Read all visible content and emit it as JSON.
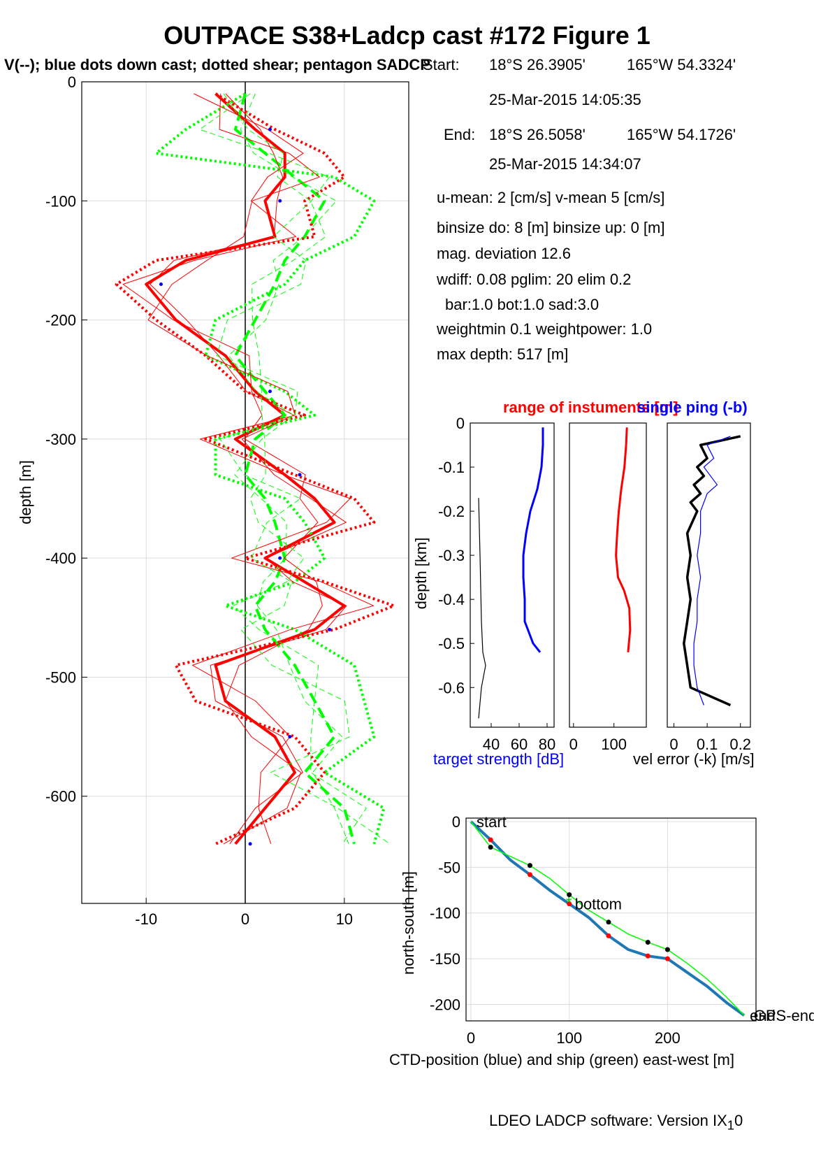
{
  "title": "OUTPACE S38+Ladcp cast #172  Figure 1",
  "subtitle": "V(--); blue dots down cast; dotted shear; pentagon SADCP",
  "info": {
    "start_label": "Start:",
    "start_lat": "18°S 26.3905'",
    "start_lon": "165°W 54.3324'",
    "start_time": "25-Mar-2015 14:05:35",
    "end_label": "End:",
    "end_lat": "18°S 26.5058'",
    "end_lon": "165°W 54.1726'",
    "end_time": "25-Mar-2015 14:34:07",
    "umean": "u-mean:   2 [cm/s]    v-mean   5 [cm/s]",
    "binsize": "binsize do: 8 [m]  binsize up:  0 [m]",
    "magdev": "mag. deviation 12.6",
    "wdiff": "wdiff: 0.08  pglim: 20  elim 0.2",
    "bar": "bar:1.0 bot:1.0 sad:3.0",
    "weight": "weightmin 0.1  weightpower: 1.0",
    "maxdepth": "max depth: 517 [m]"
  },
  "footer": "LDEO LADCP software: Version IX",
  "footer_sub": "1",
  "footer_tail": "0",
  "colors": {
    "u": "#ff0000",
    "v": "#00ff00",
    "blue": "#0000ff",
    "ctd": "#1f77b4"
  },
  "chart_data": [
    {
      "type": "line",
      "ylabel": "depth [m]",
      "xlabel": "",
      "xlim": [
        -16.5,
        16.5
      ],
      "ylim": [
        -690,
        0
      ],
      "xticks": [
        -10,
        0,
        10
      ],
      "yticks": [
        0,
        -100,
        -200,
        -300,
        -400,
        -500,
        -600
      ],
      "xtick_labels": [
        "-10",
        "0",
        "10"
      ],
      "ytick_labels": [
        "0",
        "-100",
        "-200",
        "-300",
        "-400",
        "-500",
        "-600"
      ],
      "grid": true,
      "depth": [
        -10,
        -40,
        -60,
        -80,
        -100,
        -130,
        -150,
        -170,
        -200,
        -230,
        -260,
        -280,
        -300,
        -330,
        -350,
        -370,
        -400,
        -420,
        -440,
        -460,
        -490,
        -520,
        -550,
        -580,
        -610,
        -640
      ],
      "series": [
        {
          "name": "u",
          "color": "#ff0000",
          "values": [
            -3,
            1,
            4,
            4,
            2,
            3,
            -6,
            -10,
            -7,
            -2,
            1,
            4,
            -1,
            4,
            7,
            9,
            2,
            6,
            10,
            7,
            -3,
            -2,
            3,
            5,
            2,
            -1
          ]
        },
        {
          "name": "v",
          "color": "#00ff00",
          "values": [
            0,
            -1,
            2,
            5,
            8,
            6,
            4,
            3,
            1,
            -1,
            2,
            4,
            1,
            0,
            2,
            3,
            4,
            3,
            1,
            2,
            5,
            7,
            9,
            6,
            10,
            11
          ]
        },
        {
          "name": "u-shear",
          "color": "#ff0000",
          "values": [
            -3,
            3,
            8,
            10,
            6,
            7,
            -9,
            -13,
            -9,
            -4,
            0,
            6,
            -4,
            5,
            11,
            13,
            0,
            8,
            15,
            9,
            -7,
            -5,
            5,
            8,
            5,
            -3
          ]
        },
        {
          "name": "v-shear",
          "color": "#00ff00",
          "values": [
            0,
            -6,
            -9,
            9,
            13,
            11,
            6,
            4,
            -3,
            -4,
            4,
            7,
            -3,
            -3,
            4,
            6,
            8,
            5,
            -2,
            5,
            11,
            12,
            13,
            8,
            14,
            13
          ]
        }
      ]
    },
    {
      "type": "line",
      "ylabel": "depth [km]",
      "xlabel": "target strength [dB]",
      "xlim": [
        25,
        85
      ],
      "ylim": [
        -0.69,
        0
      ],
      "xticks": [
        40,
        60,
        80
      ],
      "xtick_labels": [
        "40",
        "60",
        "80"
      ],
      "yticks": [
        0,
        -0.1,
        -0.2,
        -0.3,
        -0.4,
        -0.5,
        -0.6
      ],
      "ytick_labels": [
        "0",
        "-0.1",
        "-0.2",
        "-0.3",
        "-0.4",
        "-0.5",
        "-0.6"
      ],
      "depth": [
        -0.01,
        -0.05,
        -0.1,
        -0.15,
        -0.2,
        -0.25,
        -0.3,
        -0.35,
        -0.4,
        -0.45,
        -0.5,
        -0.52
      ],
      "series": [
        {
          "name": "",
          "color": "#0000ff",
          "values": [
            77,
            77,
            76,
            73,
            68,
            65,
            63,
            63,
            64,
            64,
            70,
            75
          ]
        }
      ],
      "black_depth": [
        -0.17,
        -0.3,
        -0.45,
        -0.52,
        -0.55,
        -0.6,
        -0.67
      ],
      "black_values": [
        31,
        32,
        33,
        34,
        36,
        33,
        31
      ]
    },
    {
      "type": "line",
      "title": "range of instuments [m]",
      "xlim": [
        -10,
        180
      ],
      "xticks": [
        0,
        100
      ],
      "xtick_labels": [
        "0",
        "100"
      ],
      "ylim": [
        -0.69,
        0
      ],
      "depth": [
        -0.01,
        -0.05,
        -0.1,
        -0.15,
        -0.2,
        -0.25,
        -0.3,
        -0.35,
        -0.38,
        -0.42,
        -0.47,
        -0.52
      ],
      "series": [
        {
          "name": "",
          "color": "#ff0000",
          "values": [
            132,
            130,
            126,
            118,
            112,
            108,
            105,
            110,
            125,
            138,
            140,
            135
          ]
        }
      ]
    },
    {
      "type": "line",
      "title": "single ping (-b)",
      "xlabel": "vel error (-k) [m/s]",
      "xlim": [
        -0.02,
        0.23
      ],
      "xticks": [
        0,
        0.1,
        0.2
      ],
      "xtick_labels": [
        "0",
        "0.1",
        "0.2"
      ],
      "ylim": [
        -0.69,
        0
      ],
      "depth": [
        -0.03,
        -0.05,
        -0.08,
        -0.1,
        -0.12,
        -0.14,
        -0.16,
        -0.18,
        -0.2,
        -0.25,
        -0.3,
        -0.35,
        -0.4,
        -0.45,
        -0.5,
        -0.55,
        -0.6,
        -0.64
      ],
      "series": [
        {
          "name": "",
          "color": "#000000",
          "values": [
            0.2,
            0.08,
            0.1,
            0.07,
            0.09,
            0.06,
            0.08,
            0.05,
            0.07,
            0.04,
            0.05,
            0.04,
            0.05,
            0.04,
            0.03,
            0.04,
            0.05,
            0.17
          ]
        },
        {
          "name": "",
          "color": "#0000ff",
          "values": [
            0.17,
            0.1,
            0.12,
            0.09,
            0.11,
            0.13,
            0.1,
            0.09,
            0.08,
            0.08,
            0.07,
            0.08,
            0.07,
            0.07,
            0.06,
            0.06,
            0.07,
            0.09
          ]
        }
      ]
    },
    {
      "type": "line",
      "xlabel": "CTD-position (blue) and ship (green) east-west [m]",
      "ylabel": "north-south [m]",
      "xlim": [
        -5,
        290
      ],
      "ylim": [
        -218,
        0
      ],
      "xticks": [
        0,
        100,
        200
      ],
      "xtick_labels": [
        "0",
        "100",
        "200"
      ],
      "yticks": [
        0,
        -50,
        -100,
        -150,
        -200
      ],
      "ytick_labels": [
        "0",
        "-50",
        "-100",
        "-150",
        "-200"
      ],
      "labels": [
        "start",
        "bottom",
        "end",
        "GPS-end"
      ],
      "series": [
        {
          "name": "CTD-position",
          "color": "#1f77b4",
          "x": [
            0,
            20,
            40,
            60,
            80,
            100,
            120,
            140,
            160,
            180,
            200,
            220,
            240,
            260,
            278
          ],
          "y": [
            0,
            -20,
            -42,
            -58,
            -75,
            -90,
            -105,
            -125,
            -140,
            -147,
            -150,
            -165,
            -180,
            -198,
            -212
          ]
        },
        {
          "name": "ship",
          "color": "#00ff00",
          "x": [
            0,
            20,
            40,
            60,
            80,
            100,
            120,
            140,
            160,
            180,
            200,
            220,
            240,
            260,
            278
          ],
          "y": [
            0,
            -28,
            -38,
            -48,
            -62,
            -80,
            -97,
            -110,
            -123,
            -132,
            -140,
            -155,
            -172,
            -192,
            -212
          ]
        }
      ]
    }
  ]
}
